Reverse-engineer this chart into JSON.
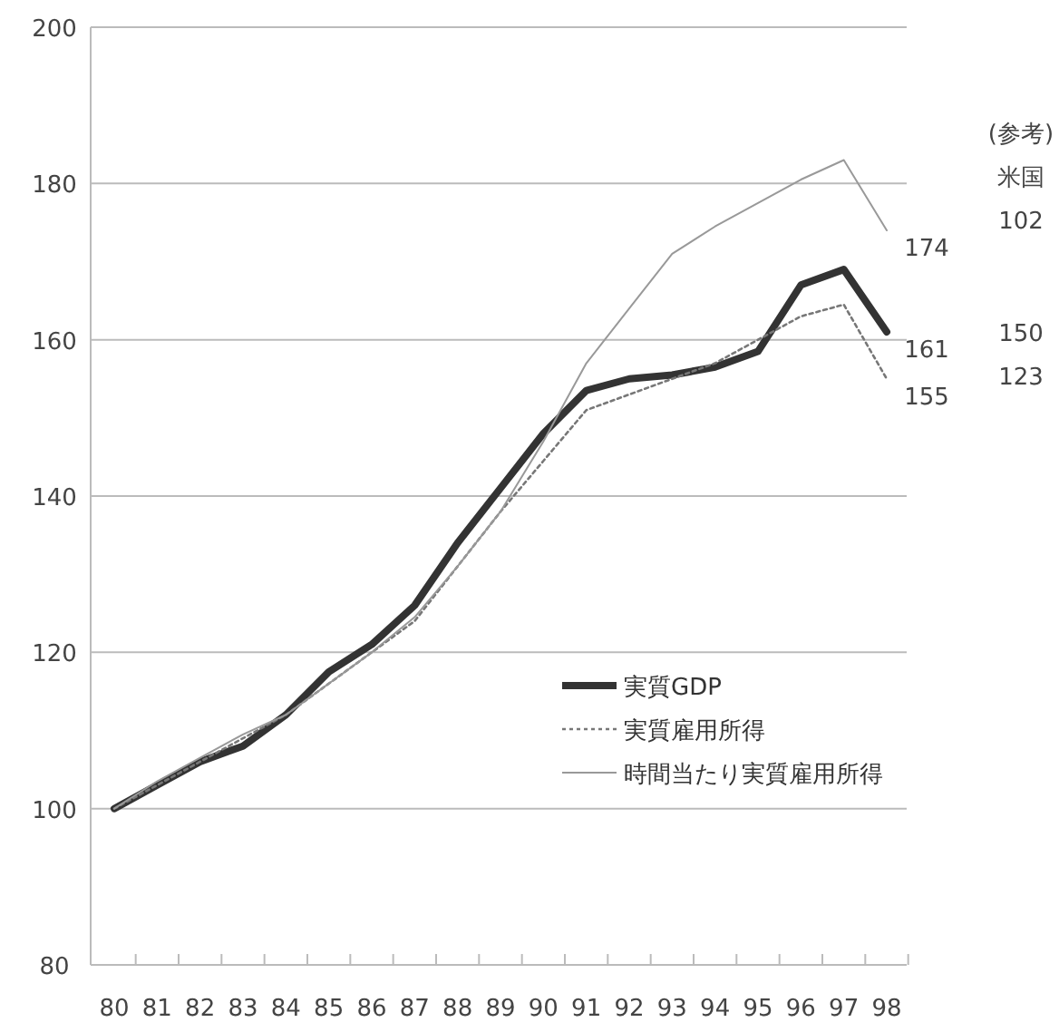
{
  "chart_data": {
    "type": "line",
    "categories": [
      "80",
      "81",
      "82",
      "83",
      "84",
      "85",
      "86",
      "87",
      "88",
      "89",
      "90",
      "91",
      "92",
      "93",
      "94",
      "95",
      "96",
      "97",
      "98"
    ],
    "series": [
      {
        "name": "実質GDP",
        "color": "#333333",
        "line_style": "solid",
        "values": [
          100,
          103,
          106,
          108,
          112,
          117.5,
          121,
          126,
          134,
          141,
          148,
          153.5,
          155,
          155.5,
          156.5,
          158.5,
          167,
          169,
          161
        ],
        "value_labels": [
          null,
          null,
          null,
          null,
          null,
          null,
          null,
          null,
          null,
          null,
          null,
          null,
          null,
          null,
          null,
          null,
          null,
          null,
          "161"
        ]
      },
      {
        "name": "実質雇用所得",
        "color": "#777777",
        "line_style": "dotted",
        "values": [
          100,
          103,
          106,
          109,
          112,
          116,
          120,
          124,
          131,
          138,
          144.5,
          151,
          153,
          155,
          157,
          160,
          163,
          164.5,
          155
        ],
        "value_labels": [
          null,
          null,
          null,
          null,
          null,
          null,
          null,
          null,
          null,
          null,
          null,
          null,
          null,
          null,
          null,
          null,
          null,
          null,
          "155"
        ]
      },
      {
        "name": "時間当たり実質雇用所得",
        "color": "#999999",
        "line_style": "solid",
        "values": [
          100,
          103.5,
          106.5,
          109.5,
          112,
          116,
          120,
          124.5,
          131,
          138,
          147,
          157,
          164,
          171,
          174.5,
          177.5,
          180.5,
          183,
          174
        ],
        "value_labels": [
          null,
          null,
          null,
          null,
          null,
          null,
          null,
          null,
          null,
          null,
          null,
          null,
          null,
          null,
          null,
          null,
          null,
          null,
          "174"
        ]
      }
    ],
    "ylim": [
      80,
      200
    ],
    "yticks": [
      80,
      100,
      120,
      140,
      160,
      180,
      200
    ],
    "grid": "y",
    "legend": "bottom right",
    "marker": "none",
    "annotations": [
      "(参考)",
      "米国",
      "102",
      "150",
      "123"
    ]
  }
}
